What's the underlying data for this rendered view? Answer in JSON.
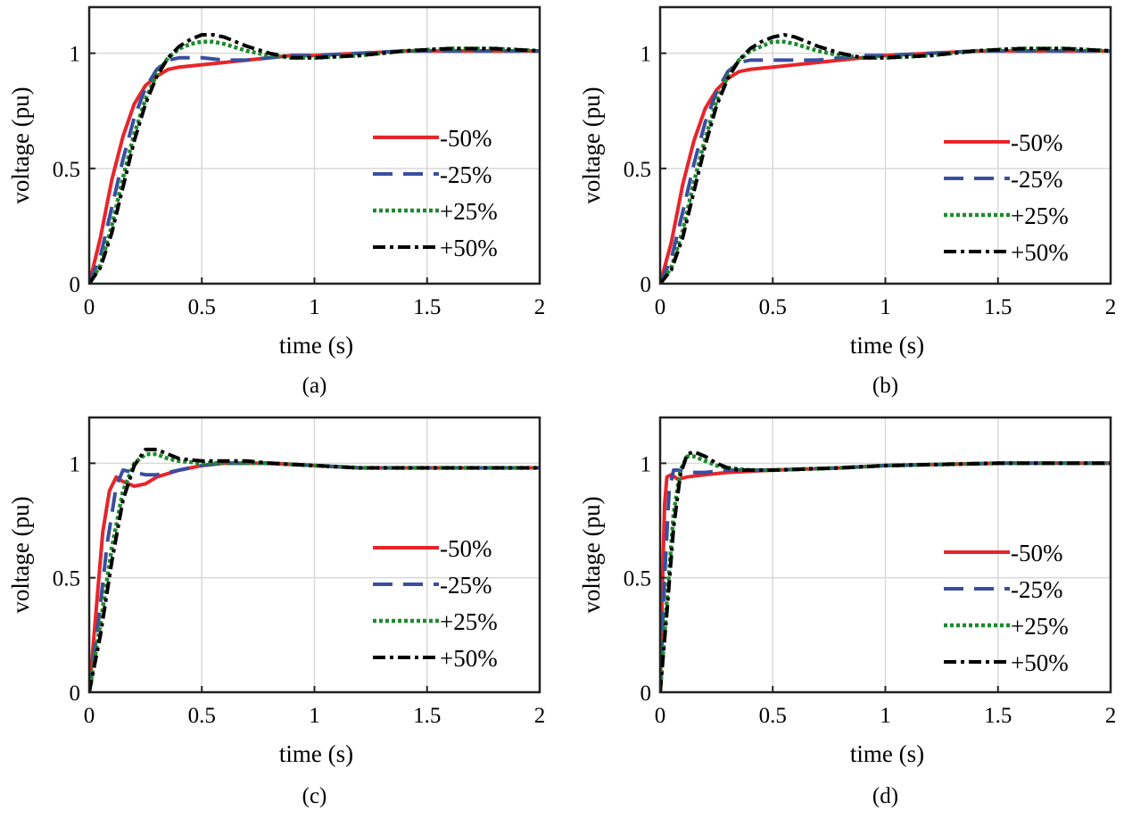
{
  "chart_data": [
    {
      "type": "line",
      "caption": "(a)",
      "xlabel": "time (s)",
      "ylabel": "voltage (pu)",
      "xlim": [
        0,
        2
      ],
      "ylim": [
        0,
        1.2
      ],
      "grid": true,
      "legend_position": "right",
      "xticks": [
        "0",
        "0.5",
        "1",
        "1.5",
        "2"
      ],
      "yticks": [
        "0",
        "0.5",
        "1"
      ],
      "series": [
        {
          "name": "-50%",
          "color": "#e8252a",
          "dash": "solid",
          "x": [
            0,
            0.05,
            0.1,
            0.15,
            0.2,
            0.25,
            0.3,
            0.35,
            0.4,
            0.5,
            0.6,
            0.7,
            0.8,
            0.9,
            1.0,
            1.2,
            1.4,
            1.6,
            1.8,
            2.0
          ],
          "y": [
            0,
            0.2,
            0.45,
            0.64,
            0.78,
            0.86,
            0.9,
            0.93,
            0.94,
            0.95,
            0.96,
            0.97,
            0.98,
            0.99,
            0.99,
            1.0,
            1.01,
            1.01,
            1.01,
            1.01
          ]
        },
        {
          "name": "-25%",
          "color": "#3a4ea0",
          "dash": "dashed",
          "x": [
            0,
            0.05,
            0.1,
            0.15,
            0.2,
            0.25,
            0.3,
            0.35,
            0.4,
            0.5,
            0.6,
            0.7,
            0.8,
            0.9,
            1.0,
            1.2,
            1.4,
            1.6,
            1.8,
            2.0
          ],
          "y": [
            0,
            0.12,
            0.33,
            0.54,
            0.72,
            0.85,
            0.93,
            0.97,
            0.98,
            0.98,
            0.97,
            0.97,
            0.98,
            0.99,
            0.99,
            1.0,
            1.01,
            1.01,
            1.01,
            1.01
          ]
        },
        {
          "name": "+25%",
          "color": "#1f8a2e",
          "dash": "dotted",
          "x": [
            0,
            0.05,
            0.1,
            0.15,
            0.2,
            0.25,
            0.3,
            0.35,
            0.4,
            0.45,
            0.5,
            0.55,
            0.6,
            0.7,
            0.8,
            0.9,
            1.0,
            1.2,
            1.4,
            1.6,
            1.8,
            2.0
          ],
          "y": [
            0,
            0.08,
            0.25,
            0.46,
            0.65,
            0.8,
            0.91,
            0.98,
            1.02,
            1.04,
            1.05,
            1.05,
            1.04,
            1.01,
            0.99,
            0.98,
            0.98,
            0.99,
            1.01,
            1.02,
            1.02,
            1.01
          ]
        },
        {
          "name": "+50%",
          "color": "#000000",
          "dash": "dashdot",
          "x": [
            0,
            0.05,
            0.1,
            0.15,
            0.2,
            0.25,
            0.3,
            0.35,
            0.4,
            0.45,
            0.5,
            0.55,
            0.6,
            0.7,
            0.8,
            0.9,
            1.0,
            1.2,
            1.4,
            1.6,
            1.8,
            2.0
          ],
          "y": [
            0,
            0.07,
            0.22,
            0.42,
            0.62,
            0.78,
            0.9,
            0.98,
            1.03,
            1.06,
            1.08,
            1.08,
            1.07,
            1.03,
            1.0,
            0.98,
            0.98,
            0.99,
            1.01,
            1.02,
            1.02,
            1.01
          ]
        }
      ]
    },
    {
      "type": "line",
      "caption": "(b)",
      "xlabel": "time (s)",
      "ylabel": "voltage (pu)",
      "xlim": [
        0,
        2
      ],
      "ylim": [
        0,
        1.2
      ],
      "grid": true,
      "legend_position": "right",
      "xticks": [
        "0",
        "0.5",
        "1",
        "1.5",
        "2"
      ],
      "yticks": [
        "0",
        "0.5",
        "1"
      ],
      "series": [
        {
          "name": "-50%",
          "color": "#e8252a",
          "dash": "solid",
          "x": [
            0,
            0.05,
            0.1,
            0.15,
            0.2,
            0.25,
            0.3,
            0.35,
            0.4,
            0.5,
            0.6,
            0.7,
            0.8,
            0.9,
            1.0,
            1.2,
            1.4,
            1.6,
            1.8,
            2.0
          ],
          "y": [
            0,
            0.18,
            0.43,
            0.62,
            0.76,
            0.84,
            0.89,
            0.92,
            0.93,
            0.94,
            0.95,
            0.96,
            0.97,
            0.98,
            0.99,
            1.0,
            1.01,
            1.01,
            1.01,
            1.01
          ]
        },
        {
          "name": "-25%",
          "color": "#3a4ea0",
          "dash": "dashed",
          "x": [
            0,
            0.05,
            0.1,
            0.15,
            0.2,
            0.25,
            0.3,
            0.35,
            0.4,
            0.5,
            0.6,
            0.7,
            0.8,
            0.9,
            1.0,
            1.2,
            1.4,
            1.6,
            1.8,
            2.0
          ],
          "y": [
            0,
            0.11,
            0.31,
            0.52,
            0.7,
            0.83,
            0.92,
            0.96,
            0.97,
            0.97,
            0.97,
            0.97,
            0.98,
            0.99,
            0.99,
            1.0,
            1.01,
            1.01,
            1.01,
            1.01
          ]
        },
        {
          "name": "+25%",
          "color": "#1f8a2e",
          "dash": "dotted",
          "x": [
            0,
            0.05,
            0.1,
            0.15,
            0.2,
            0.25,
            0.3,
            0.35,
            0.4,
            0.45,
            0.5,
            0.55,
            0.6,
            0.7,
            0.8,
            0.9,
            1.0,
            1.2,
            1.4,
            1.6,
            1.8,
            2.0
          ],
          "y": [
            0,
            0.07,
            0.23,
            0.44,
            0.63,
            0.79,
            0.9,
            0.97,
            1.01,
            1.03,
            1.05,
            1.05,
            1.04,
            1.01,
            0.99,
            0.98,
            0.98,
            0.99,
            1.01,
            1.02,
            1.02,
            1.01
          ]
        },
        {
          "name": "+50%",
          "color": "#000000",
          "dash": "dashdot",
          "x": [
            0,
            0.05,
            0.1,
            0.15,
            0.2,
            0.25,
            0.3,
            0.35,
            0.4,
            0.45,
            0.5,
            0.55,
            0.6,
            0.7,
            0.8,
            0.9,
            1.0,
            1.2,
            1.4,
            1.6,
            1.8,
            2.0
          ],
          "y": [
            0,
            0.06,
            0.2,
            0.4,
            0.6,
            0.77,
            0.89,
            0.97,
            1.02,
            1.05,
            1.07,
            1.08,
            1.07,
            1.03,
            1.0,
            0.98,
            0.98,
            0.99,
            1.01,
            1.02,
            1.02,
            1.01
          ]
        }
      ]
    },
    {
      "type": "line",
      "caption": "(c)",
      "xlabel": "time (s)",
      "ylabel": "voltage (pu)",
      "xlim": [
        0,
        2
      ],
      "ylim": [
        0,
        1.2
      ],
      "grid": true,
      "legend_position": "right",
      "xticks": [
        "0",
        "0.5",
        "1",
        "1.5",
        "2"
      ],
      "yticks": [
        "0",
        "0.5",
        "1"
      ],
      "series": [
        {
          "name": "-50%",
          "color": "#e8252a",
          "dash": "solid",
          "x": [
            0,
            0.03,
            0.06,
            0.09,
            0.12,
            0.15,
            0.2,
            0.25,
            0.3,
            0.4,
            0.5,
            0.6,
            0.7,
            0.8,
            1.0,
            1.2,
            1.4,
            1.6,
            1.8,
            2.0
          ],
          "y": [
            0,
            0.35,
            0.7,
            0.88,
            0.94,
            0.92,
            0.9,
            0.91,
            0.94,
            0.97,
            0.99,
            1.0,
            1.0,
            1.0,
            0.99,
            0.98,
            0.98,
            0.98,
            0.98,
            0.98
          ]
        },
        {
          "name": "-25%",
          "color": "#3a4ea0",
          "dash": "dashed",
          "x": [
            0,
            0.04,
            0.08,
            0.12,
            0.15,
            0.2,
            0.25,
            0.3,
            0.35,
            0.4,
            0.5,
            0.6,
            0.7,
            0.8,
            1.0,
            1.2,
            1.4,
            1.6,
            1.8,
            2.0
          ],
          "y": [
            0,
            0.3,
            0.65,
            0.9,
            0.97,
            0.96,
            0.95,
            0.95,
            0.96,
            0.97,
            0.99,
            1.0,
            1.0,
            1.0,
            0.99,
            0.98,
            0.98,
            0.98,
            0.98,
            0.98
          ]
        },
        {
          "name": "+25%",
          "color": "#1f8a2e",
          "dash": "dotted",
          "x": [
            0,
            0.05,
            0.1,
            0.15,
            0.2,
            0.25,
            0.3,
            0.35,
            0.4,
            0.5,
            0.6,
            0.7,
            0.8,
            1.0,
            1.2,
            1.4,
            1.6,
            1.8,
            2.0
          ],
          "y": [
            0,
            0.3,
            0.63,
            0.88,
            1.0,
            1.04,
            1.04,
            1.02,
            1.01,
            1.0,
            1.0,
            1.0,
            1.0,
            0.99,
            0.98,
            0.98,
            0.98,
            0.98,
            0.98
          ]
        },
        {
          "name": "+50%",
          "color": "#000000",
          "dash": "dashdot",
          "x": [
            0,
            0.05,
            0.1,
            0.15,
            0.2,
            0.25,
            0.3,
            0.35,
            0.4,
            0.5,
            0.6,
            0.7,
            0.8,
            1.0,
            1.2,
            1.4,
            1.6,
            1.8,
            2.0
          ],
          "y": [
            0,
            0.25,
            0.57,
            0.84,
            0.99,
            1.06,
            1.06,
            1.04,
            1.02,
            1.01,
            1.01,
            1.01,
            1.0,
            0.99,
            0.98,
            0.98,
            0.98,
            0.98,
            0.98
          ]
        }
      ]
    },
    {
      "type": "line",
      "caption": "(d)",
      "xlabel": "time (s)",
      "ylabel": "voltage (pu)",
      "xlim": [
        0,
        2
      ],
      "ylim": [
        0,
        1.2
      ],
      "grid": true,
      "legend_position": "right",
      "xticks": [
        "0",
        "0.5",
        "1",
        "1.5",
        "2"
      ],
      "yticks": [
        "0",
        "0.5",
        "1"
      ],
      "series": [
        {
          "name": "-50%",
          "color": "#e8252a",
          "dash": "solid",
          "x": [
            0,
            0.01,
            0.02,
            0.03,
            0.05,
            0.08,
            0.12,
            0.2,
            0.3,
            0.5,
            0.8,
            1.0,
            1.5,
            2.0
          ],
          "y": [
            0,
            0.45,
            0.82,
            0.94,
            0.95,
            0.93,
            0.94,
            0.95,
            0.96,
            0.97,
            0.98,
            0.99,
            1.0,
            1.0
          ]
        },
        {
          "name": "-25%",
          "color": "#3a4ea0",
          "dash": "dashed",
          "x": [
            0,
            0.02,
            0.04,
            0.06,
            0.08,
            0.12,
            0.2,
            0.3,
            0.5,
            0.8,
            1.0,
            1.5,
            2.0
          ],
          "y": [
            0,
            0.5,
            0.88,
            0.97,
            0.97,
            0.96,
            0.96,
            0.97,
            0.97,
            0.98,
            0.99,
            1.0,
            1.0
          ]
        },
        {
          "name": "+25%",
          "color": "#1f8a2e",
          "dash": "dotted",
          "x": [
            0,
            0.03,
            0.06,
            0.09,
            0.12,
            0.15,
            0.2,
            0.25,
            0.3,
            0.4,
            0.5,
            0.8,
            1.0,
            1.5,
            2.0
          ],
          "y": [
            0,
            0.4,
            0.78,
            0.97,
            1.03,
            1.03,
            1.01,
            0.99,
            0.98,
            0.97,
            0.97,
            0.98,
            0.99,
            1.0,
            1.0
          ]
        },
        {
          "name": "+50%",
          "color": "#000000",
          "dash": "dashdot",
          "x": [
            0,
            0.03,
            0.06,
            0.09,
            0.12,
            0.15,
            0.2,
            0.25,
            0.3,
            0.35,
            0.4,
            0.5,
            0.8,
            1.0,
            1.5,
            2.0
          ],
          "y": [
            0,
            0.35,
            0.72,
            0.95,
            1.04,
            1.05,
            1.03,
            1.0,
            0.98,
            0.97,
            0.97,
            0.97,
            0.98,
            0.99,
            1.0,
            1.0
          ]
        }
      ]
    }
  ]
}
